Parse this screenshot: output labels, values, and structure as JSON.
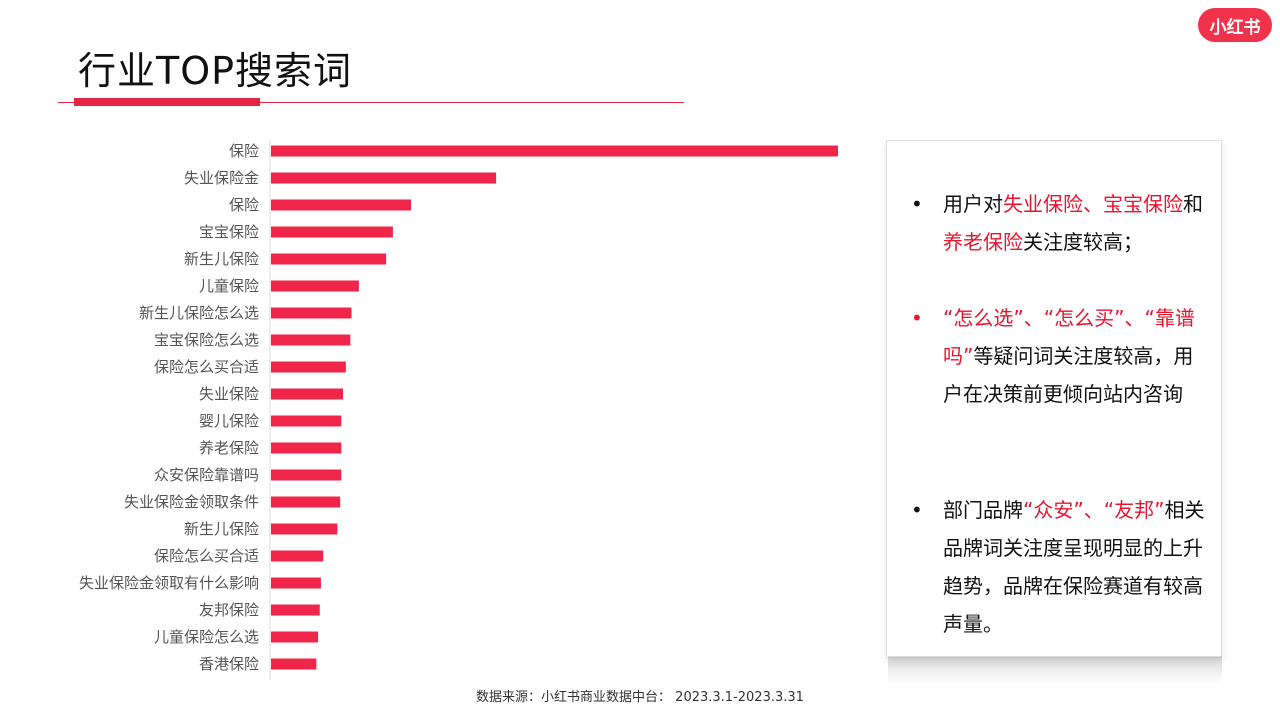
{
  "header": {
    "title": "行业TOP搜索词",
    "logo_text": "小红书"
  },
  "colors": {
    "accent": "#e62643",
    "bar": "#f0254a",
    "highlight": "#e6152e"
  },
  "chart_data": {
    "type": "bar",
    "orientation": "horizontal",
    "title": "行业TOP搜索词",
    "xlabel": "",
    "ylabel": "",
    "categories": [
      "保险",
      "失业保险金",
      "保险",
      "宝宝保险",
      "新生儿保险",
      "儿童保险",
      "新生儿保险怎么选",
      "宝宝保险怎么选",
      "保险怎么买合适",
      "失业保险",
      "婴儿保险",
      "养老保险",
      "众安保险靠谱吗",
      "失业保险金领取条件",
      "新生儿保险",
      "保险怎么买合适",
      "失业保险金领取有什么影响",
      "友邦保险",
      "儿童保险怎么选",
      "香港保险"
    ],
    "values": [
      100,
      39.7,
      24.7,
      21.5,
      20.3,
      15.5,
      14.2,
      14.0,
      13.2,
      12.7,
      12.4,
      12.4,
      12.4,
      12.2,
      11.7,
      9.2,
      8.8,
      8.6,
      8.3,
      8.0
    ],
    "xlim": [
      0,
      100
    ],
    "grid": false
  },
  "insights": {
    "b1": {
      "dot": "•",
      "t1": "用户对",
      "h1": "失业保险",
      "sep1": "、",
      "h2": "宝宝保险",
      "t2": "和",
      "h3": "养老保险",
      "t3": "关注度较高；"
    },
    "b2": {
      "dot": "•",
      "h1": "“怎么选”",
      "sep1": "、",
      "h2": "“怎么买”",
      "sep2": "、",
      "h3": "“靠谱吗”",
      "t1": "等疑问词关注度较高，用户在决策前更倾向站内咨询"
    },
    "b3": {
      "dot": "•",
      "t1": "部门品牌",
      "h1": "“众安”",
      "sep1": "、",
      "h2": "“友邦”",
      "t2": "相关品牌词关注度呈现明显的上升趋势，品牌在保险赛道有较高声量。"
    }
  },
  "footer": {
    "source": "数据来源：小红书商业数据中台：  2023.3.1-2023.3.31"
  }
}
